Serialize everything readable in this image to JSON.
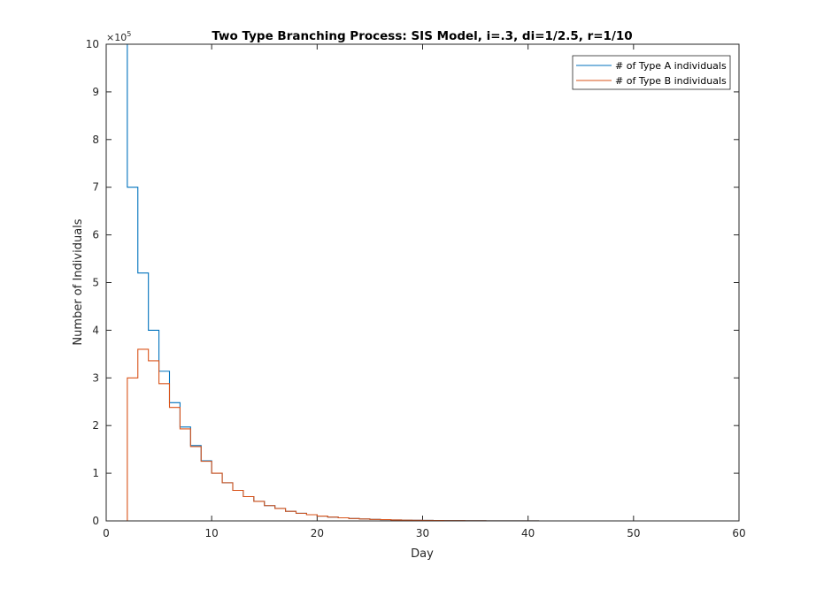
{
  "chart_data": {
    "type": "line",
    "step": true,
    "title": "Two Type Branching Process: SIS Model, i=.3, di=1/2.5, r=1/10",
    "xlabel": "Day",
    "ylabel": "Number of Individuals",
    "y_exponent_label": "×10",
    "y_exponent_power": "5",
    "xlim": [
      0,
      60
    ],
    "ylim": [
      0,
      10
    ],
    "xticks": [
      0,
      10,
      20,
      30,
      40,
      50,
      60
    ],
    "yticks": [
      0,
      1,
      2,
      3,
      4,
      5,
      6,
      7,
      8,
      9,
      10
    ],
    "legend_position": "top-right",
    "series": [
      {
        "name": "# of Type A individuals",
        "color": "#0072BD",
        "x": [
          0,
          1,
          2,
          3,
          4,
          5,
          6,
          7,
          8,
          9,
          10,
          11,
          12,
          13,
          14,
          15,
          16,
          17,
          18,
          19,
          20,
          21,
          22,
          23,
          24,
          25,
          26,
          27,
          28,
          29,
          30,
          31,
          32,
          33,
          34,
          35,
          36,
          37,
          38,
          39,
          40,
          41,
          42,
          43,
          44,
          45,
          46,
          47,
          48,
          49,
          50,
          51,
          52,
          53,
          54,
          55,
          56,
          57,
          58,
          59,
          60
        ],
        "y": [
          10,
          10,
          7.0,
          5.2,
          4.0,
          3.14,
          2.48,
          1.97,
          1.58,
          1.26,
          1.0,
          0.8,
          0.64,
          0.51,
          0.41,
          0.32,
          0.26,
          0.2,
          0.16,
          0.13,
          0.1,
          0.08,
          0.065,
          0.05,
          0.04,
          0.032,
          0.026,
          0.02,
          0.016,
          0.013,
          0.01,
          0.008,
          0.006,
          0.005,
          0.004,
          0.003,
          0.002,
          0.002,
          0.001,
          0.001,
          0.001,
          0,
          0,
          0,
          0,
          0,
          0,
          0,
          0,
          0,
          0,
          0,
          0,
          0,
          0,
          0,
          0,
          0,
          0,
          0,
          0
        ]
      },
      {
        "name": "# of Type B individuals",
        "color": "#D95319",
        "x": [
          0,
          1,
          2,
          3,
          4,
          5,
          6,
          7,
          8,
          9,
          10,
          11,
          12,
          13,
          14,
          15,
          16,
          17,
          18,
          19,
          20,
          21,
          22,
          23,
          24,
          25,
          26,
          27,
          28,
          29,
          30,
          31,
          32,
          33,
          34,
          35,
          36,
          37,
          38,
          39,
          40,
          41,
          42,
          43,
          44,
          45,
          46,
          47,
          48,
          49,
          50,
          51,
          52,
          53,
          54,
          55,
          56,
          57,
          58,
          59,
          60
        ],
        "y": [
          0,
          0,
          3.0,
          3.6,
          3.36,
          2.88,
          2.38,
          1.93,
          1.56,
          1.25,
          1.0,
          0.8,
          0.64,
          0.51,
          0.41,
          0.32,
          0.26,
          0.2,
          0.16,
          0.13,
          0.1,
          0.08,
          0.065,
          0.05,
          0.04,
          0.032,
          0.026,
          0.02,
          0.016,
          0.013,
          0.01,
          0.008,
          0.006,
          0.005,
          0.004,
          0.003,
          0.002,
          0.002,
          0.001,
          0.001,
          0.001,
          0,
          0,
          0,
          0,
          0,
          0,
          0,
          0,
          0,
          0,
          0,
          0,
          0,
          0,
          0,
          0,
          0,
          0,
          0,
          0
        ]
      }
    ]
  }
}
